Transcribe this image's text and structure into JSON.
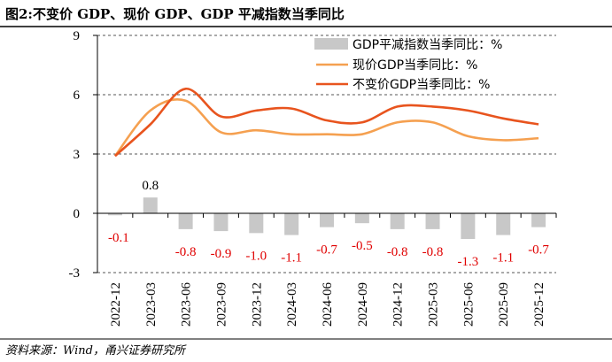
{
  "title": "图2:不变价 GDP、现价 GDP、GDP 平减指数当季同比",
  "source": "资料来源：Wind，甬兴证券研究所",
  "colors": {
    "deflator": "#c8c8c8",
    "nominal": "#f5a050",
    "real": "#e8541e",
    "negative_label": "#e00000",
    "grid": "#555555"
  },
  "chart_data": {
    "type": "bar",
    "categories": [
      "2022-12",
      "2023-03",
      "2023-06",
      "2023-09",
      "2023-12",
      "2024-03",
      "2024-06",
      "2024-09",
      "2024-12",
      "2025-03",
      "2025-06",
      "2025-09",
      "2025-12"
    ],
    "y_ticks": [
      "9",
      "6",
      "3",
      "0",
      "-3"
    ],
    "ylim": [
      -3,
      9
    ],
    "grid": true,
    "legend_position": "top-right",
    "series": [
      {
        "name": "GDP平减指数当季同比：%",
        "type": "bar",
        "values": [
          -0.1,
          0.8,
          -0.8,
          -0.9,
          -1.0,
          -1.1,
          -0.7,
          -0.5,
          -0.8,
          -0.8,
          -1.3,
          -1.1,
          -0.7
        ],
        "labels": [
          "-0.1",
          "0.8",
          "-0.8",
          "-0.9",
          "-1.0",
          "-1.1",
          "-0.7",
          "-0.5",
          "-0.8",
          "-0.8",
          "-1.3",
          "-1.1",
          "-0.7"
        ]
      },
      {
        "name": "现价GDP当季同比：%",
        "type": "line",
        "values": [
          2.9,
          5.2,
          5.7,
          4.1,
          4.2,
          4.0,
          4.0,
          4.0,
          4.6,
          4.6,
          3.9,
          3.7,
          3.8
        ]
      },
      {
        "name": "不变价GDP当季同比：%",
        "type": "line",
        "values": [
          2.9,
          4.5,
          6.3,
          4.9,
          5.2,
          5.3,
          4.7,
          4.6,
          5.4,
          5.4,
          5.2,
          4.8,
          4.5
        ]
      }
    ]
  }
}
